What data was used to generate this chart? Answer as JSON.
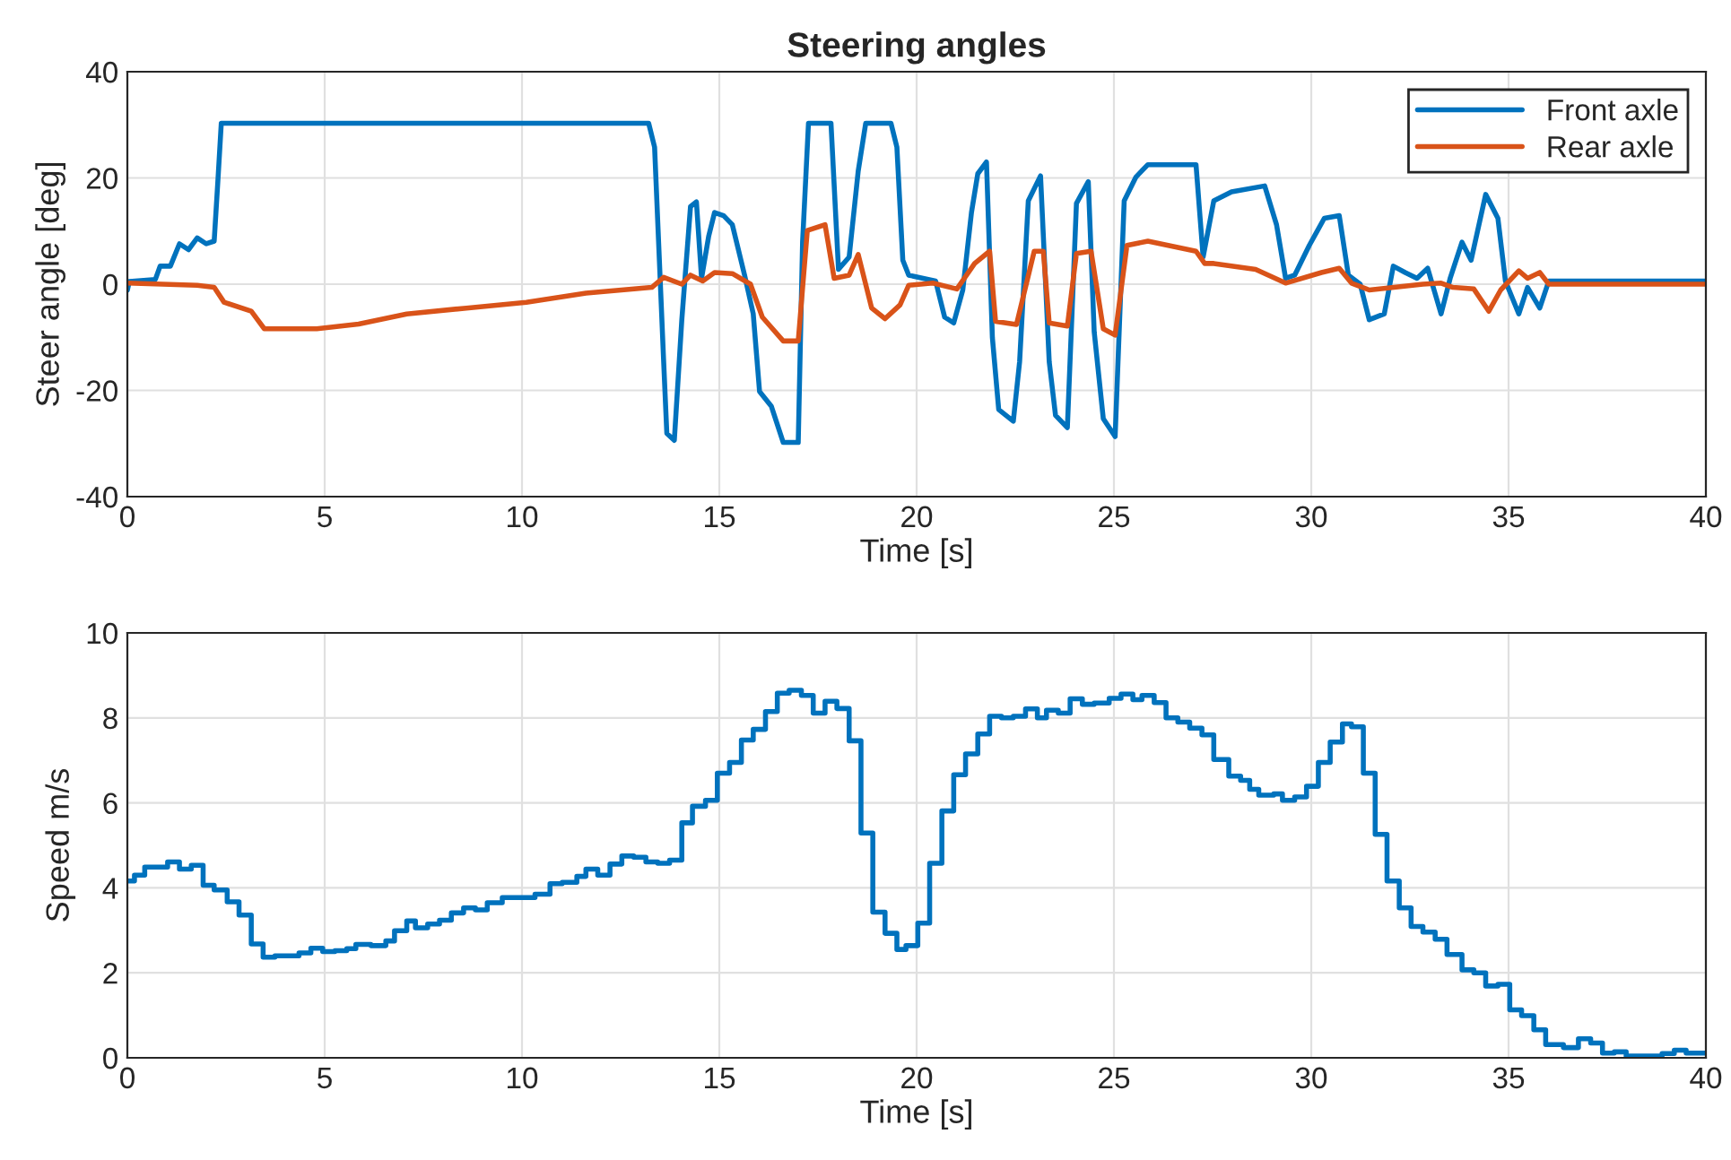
{
  "chart_data": [
    {
      "type": "line",
      "title": "Steering angles",
      "xlabel": "Time [s]",
      "ylabel": "Steer angle [deg]",
      "xlim": [
        0,
        40
      ],
      "xticks": [
        0,
        5,
        10,
        15,
        20,
        25,
        30,
        35,
        40
      ],
      "ylim": [
        -40,
        40
      ],
      "yticks": [
        -40,
        -20,
        0,
        20,
        40
      ],
      "grid": true,
      "legend": "top right",
      "series": [
        {
          "name": "Front axle",
          "color": "#0072bd",
          "x": [
            0,
            0.05,
            0.71,
            0.83,
            1.09,
            1.32,
            1.55,
            1.77,
            2.0,
            2.2,
            2.3,
            2.38,
            13.21,
            13.36,
            13.59,
            13.67,
            13.86,
            14.05,
            14.27,
            14.42,
            14.55,
            14.73,
            14.88,
            15.11,
            15.33,
            15.64,
            15.86,
            16.02,
            16.32,
            16.62,
            17.0,
            17.11,
            17.26,
            17.83,
            18.02,
            18.29,
            18.52,
            18.71,
            19.35,
            19.5,
            19.65,
            19.8,
            20.48,
            20.71,
            20.94,
            21.17,
            21.39,
            21.55,
            21.77,
            21.92,
            22.08,
            22.45,
            22.61,
            22.83,
            23.14,
            23.36,
            23.52,
            23.82,
            24.05,
            24.35,
            24.5,
            24.73,
            25.03,
            25.26,
            25.56,
            25.86,
            27.08,
            27.26,
            27.53,
            27.98,
            28.82,
            29.12,
            29.35,
            29.58,
            29.95,
            30.33,
            30.71,
            30.94,
            31.24,
            31.47,
            31.85,
            32.08,
            32.38,
            32.68,
            32.95,
            33.29,
            33.52,
            33.82,
            34.05,
            34.42,
            34.73,
            34.92,
            35.26,
            35.48,
            35.79,
            36.02,
            40
          ],
          "values": [
            -1.1,
            0.5,
            0.9,
            3.4,
            3.4,
            7.6,
            6.5,
            8.7,
            7.6,
            8.1,
            20.2,
            30.3,
            30.3,
            25.8,
            -14.6,
            -28.1,
            -29.4,
            -6.7,
            14.6,
            15.5,
            1.1,
            9.0,
            13.5,
            12.9,
            11.2,
            1.7,
            -5.6,
            -20.2,
            -23.0,
            -29.8,
            -29.8,
            7.9,
            30.3,
            30.3,
            2.8,
            5.1,
            21.3,
            30.3,
            30.3,
            25.8,
            4.5,
            1.7,
            0.6,
            -6.2,
            -7.3,
            -1.1,
            13.5,
            20.8,
            23.0,
            -10.1,
            -23.6,
            -25.8,
            -14.6,
            15.7,
            20.4,
            -14.6,
            -24.7,
            -27.0,
            15.2,
            19.3,
            -9.0,
            -25.3,
            -28.7,
            15.7,
            20.2,
            22.5,
            22.5,
            5.1,
            15.7,
            17.4,
            18.5,
            11.2,
            1.1,
            1.7,
            7.3,
            12.4,
            12.9,
            1.7,
            0,
            -6.7,
            -5.6,
            3.4,
            2.2,
            1.1,
            3.0,
            -5.6,
            1.1,
            7.9,
            4.5,
            16.9,
            12.4,
            0.6,
            -5.6,
            -0.6,
            -4.5,
            0.6,
            0.6
          ]
        },
        {
          "name": "Rear axle",
          "color": "#d95319",
          "x": [
            0,
            1.77,
            2.2,
            2.45,
            3.14,
            3.47,
            4.8,
            5.86,
            7.08,
            8.59,
            10.11,
            11.62,
            13.29,
            13.59,
            14.05,
            14.27,
            14.58,
            14.88,
            15.33,
            15.79,
            16.09,
            16.62,
            17.0,
            17.23,
            17.68,
            17.91,
            18.29,
            18.52,
            18.86,
            19.2,
            19.58,
            19.8,
            20.41,
            21.02,
            21.47,
            21.85,
            22.0,
            22.53,
            22.98,
            23.21,
            23.36,
            23.82,
            24.05,
            24.42,
            24.73,
            25.03,
            25.33,
            25.86,
            27.08,
            27.3,
            27.53,
            28.59,
            29.35,
            30.26,
            30.71,
            31.02,
            31.47,
            32.83,
            33.29,
            33.59,
            34.12,
            34.5,
            34.8,
            35.26,
            35.48,
            35.79,
            36.02,
            40
          ],
          "values": [
            0.2,
            -0.2,
            -0.6,
            -3.4,
            -5.1,
            -8.4,
            -8.4,
            -7.5,
            -5.6,
            -4.5,
            -3.4,
            -1.7,
            -0.6,
            1.3,
            0,
            1.7,
            0.6,
            2.2,
            2.0,
            0,
            -6.2,
            -10.7,
            -10.7,
            10.1,
            11.2,
            1.1,
            1.7,
            5.6,
            -4.5,
            -6.5,
            -3.9,
            -0.2,
            0.2,
            -0.9,
            3.9,
            6.2,
            -7.0,
            -7.6,
            6.2,
            6.2,
            -7.3,
            -7.9,
            5.8,
            6.2,
            -8.4,
            -9.6,
            7.3,
            8.1,
            6.2,
            3.9,
            3.9,
            2.8,
            0.2,
            2.2,
            3.0,
            0.2,
            -1.1,
            0,
            0.2,
            -0.6,
            -0.9,
            -5.1,
            -1.1,
            2.5,
            1.1,
            2.2,
            0,
            0
          ]
        }
      ]
    },
    {
      "type": "step",
      "xlabel": "Time [s]",
      "ylabel": "Speed m/s",
      "xlim": [
        0,
        40
      ],
      "xticks": [
        0,
        5,
        10,
        15,
        20,
        25,
        30,
        35,
        40
      ],
      "ylim": [
        0,
        10
      ],
      "yticks": [
        0,
        2,
        4,
        6,
        8,
        10
      ],
      "grid": true,
      "series": [
        {
          "color": "#0072bd",
          "x": [
            0,
            0.18,
            0.44,
            1.02,
            1.32,
            1.62,
            1.92,
            2.2,
            2.53,
            2.83,
            3.14,
            3.44,
            3.74,
            4.35,
            4.65,
            4.95,
            5.26,
            5.56,
            5.79,
            6.17,
            6.55,
            6.77,
            7.08,
            7.3,
            7.61,
            7.91,
            8.21,
            8.52,
            8.82,
            9.12,
            9.5,
            9.8,
            10.33,
            10.71,
            11.02,
            11.39,
            11.62,
            11.92,
            12.23,
            12.53,
            12.83,
            13.14,
            13.44,
            13.74,
            14.05,
            14.32,
            14.65,
            14.95,
            15.26,
            15.56,
            15.86,
            16.17,
            16.47,
            16.77,
            17.08,
            17.38,
            17.68,
            17.98,
            18.29,
            18.59,
            18.89,
            19.2,
            19.5,
            19.73,
            20.03,
            20.33,
            20.64,
            20.94,
            21.24,
            21.55,
            21.85,
            22.15,
            22.45,
            22.76,
            23.06,
            23.29,
            23.59,
            23.89,
            24.2,
            24.5,
            24.88,
            25.18,
            25.48,
            25.71,
            26.02,
            26.32,
            26.62,
            26.92,
            27.23,
            27.53,
            27.91,
            28.21,
            28.44,
            28.67,
            29.05,
            29.27,
            29.58,
            29.88,
            30.18,
            30.48,
            30.79,
            31.02,
            31.32,
            31.62,
            31.92,
            32.23,
            32.53,
            32.83,
            33.14,
            33.44,
            33.82,
            34.12,
            34.42,
            34.73,
            35.03,
            35.33,
            35.64,
            35.94,
            36.39,
            36.77,
            37.08,
            37.38,
            37.68,
            37.98,
            38.89,
            39.2,
            39.5,
            40
          ],
          "values": [
            4.16,
            4.3,
            4.49,
            4.61,
            4.44,
            4.53,
            4.06,
            3.95,
            3.67,
            3.36,
            2.68,
            2.37,
            2.4,
            2.47,
            2.58,
            2.5,
            2.52,
            2.57,
            2.67,
            2.64,
            2.75,
            2.99,
            3.22,
            3.06,
            3.15,
            3.24,
            3.41,
            3.53,
            3.48,
            3.65,
            3.77,
            3.77,
            3.85,
            4.1,
            4.13,
            4.27,
            4.44,
            4.3,
            4.56,
            4.75,
            4.72,
            4.61,
            4.58,
            4.65,
            5.53,
            5.92,
            6.06,
            6.7,
            6.95,
            7.48,
            7.73,
            8.15,
            8.58,
            8.65,
            8.53,
            8.11,
            8.39,
            8.22,
            7.46,
            5.29,
            3.43,
            2.93,
            2.55,
            2.64,
            3.17,
            4.58,
            5.81,
            6.66,
            7.15,
            7.62,
            8.04,
            8.0,
            8.04,
            8.21,
            8.0,
            8.18,
            8.11,
            8.45,
            8.32,
            8.35,
            8.46,
            8.56,
            8.43,
            8.53,
            8.36,
            8.0,
            7.9,
            7.76,
            7.6,
            7.02,
            6.63,
            6.53,
            6.32,
            6.18,
            6.21,
            6.06,
            6.14,
            6.39,
            6.95,
            7.43,
            7.86,
            7.79,
            6.7,
            5.26,
            4.16,
            3.53,
            3.09,
            2.96,
            2.79,
            2.43,
            2.07,
            2.0,
            1.69,
            1.73,
            1.13,
            0.99,
            0.66,
            0.31,
            0.24,
            0.45,
            0.35,
            0.11,
            0.14,
            0.04,
            0.1,
            0.18,
            0.11,
            0.11
          ]
        }
      ]
    }
  ]
}
